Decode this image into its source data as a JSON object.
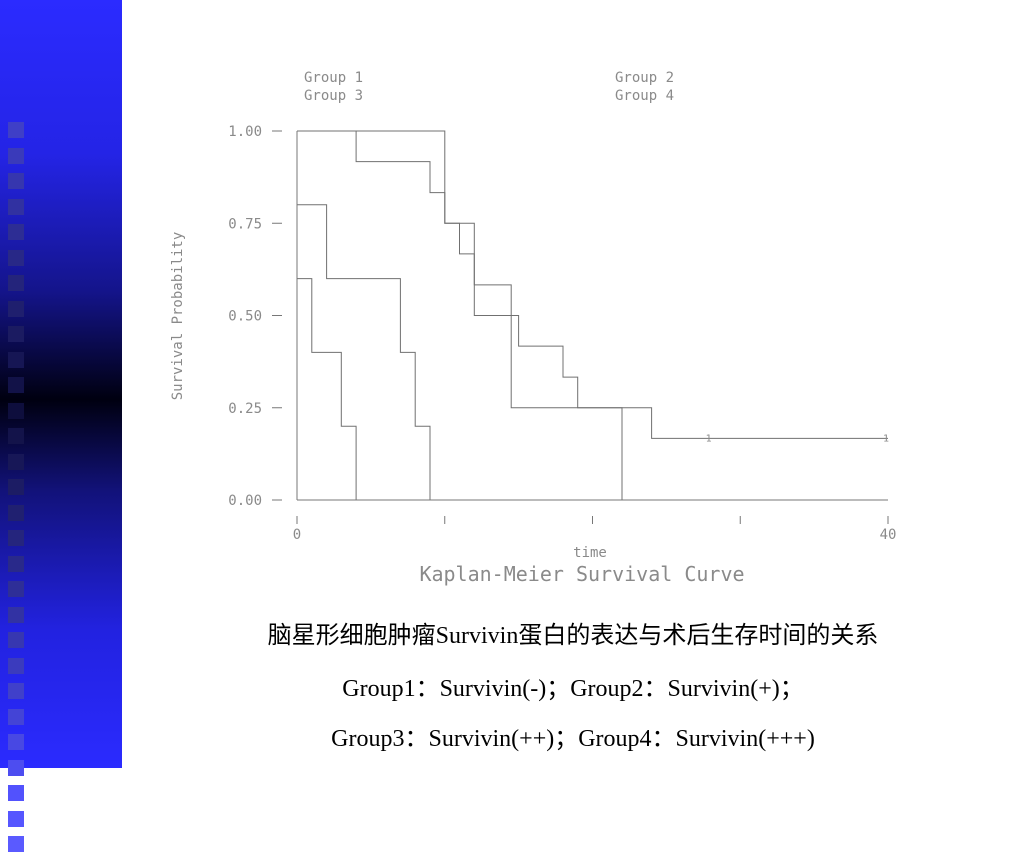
{
  "chart_data": {
    "type": "line",
    "title": "Kaplan-Meier Survival Curve",
    "xlabel": "time",
    "ylabel": "Survival Probability",
    "xlim": [
      0,
      40
    ],
    "ylim": [
      0,
      1
    ],
    "xticks": [
      0,
      10,
      20,
      30,
      40
    ],
    "xtick_labels": [
      "0",
      "",
      "",
      "",
      "40"
    ],
    "yticks": [
      0.0,
      0.25,
      0.5,
      0.75,
      1.0
    ],
    "ytick_labels": [
      "0.00",
      "0.25",
      "0.50",
      "0.75",
      "1.00"
    ],
    "legend": [
      "Group 1",
      "Group 2",
      "Group 3",
      "Group 4"
    ],
    "censor_mark": "1",
    "series": [
      {
        "name": "Group 1",
        "color": "#707070",
        "steps": [
          [
            0,
            1.0
          ],
          [
            10,
            1.0
          ],
          [
            10,
            0.75
          ],
          [
            12,
            0.75
          ],
          [
            12,
            0.583
          ],
          [
            14.5,
            0.583
          ],
          [
            14.5,
            0.25
          ],
          [
            22,
            0.25
          ],
          [
            22,
            0.0
          ]
        ]
      },
      {
        "name": "Group 2",
        "color": "#707070",
        "steps": [
          [
            0,
            1.0
          ],
          [
            4,
            1.0
          ],
          [
            4,
            0.917
          ],
          [
            9,
            0.917
          ],
          [
            9,
            0.833
          ],
          [
            10,
            0.833
          ],
          [
            10,
            0.75
          ],
          [
            11,
            0.75
          ],
          [
            11,
            0.667
          ],
          [
            12,
            0.667
          ],
          [
            12,
            0.5
          ],
          [
            15,
            0.5
          ],
          [
            15,
            0.417
          ],
          [
            18,
            0.417
          ],
          [
            18,
            0.333
          ],
          [
            19,
            0.333
          ],
          [
            19,
            0.25
          ],
          [
            24,
            0.25
          ],
          [
            24,
            0.167
          ],
          [
            40,
            0.167
          ]
        ],
        "censored": [
          [
            28,
            0.167
          ],
          [
            40,
            0.167
          ]
        ]
      },
      {
        "name": "Group 3",
        "color": "#707070",
        "steps": [
          [
            0,
            0.8
          ],
          [
            2,
            0.8
          ],
          [
            2,
            0.6
          ],
          [
            7,
            0.6
          ],
          [
            7,
            0.4
          ],
          [
            8,
            0.4
          ],
          [
            8,
            0.2
          ],
          [
            9,
            0.2
          ],
          [
            9,
            0.0
          ]
        ]
      },
      {
        "name": "Group 4",
        "color": "#707070",
        "steps": [
          [
            0,
            0.6
          ],
          [
            1,
            0.6
          ],
          [
            1,
            0.4
          ],
          [
            3,
            0.4
          ],
          [
            3,
            0.2
          ],
          [
            4,
            0.2
          ],
          [
            4,
            0.0
          ]
        ]
      }
    ]
  },
  "caption": {
    "line1": "脑星形细胞肿瘤Survivin蛋白的表达与术后生存时间的关系",
    "line2": "Group1：Survivin(-)；Group2：Survivin(+)；",
    "line3": "Group3：Survivin(++)；Group4：Survivin(+++)"
  }
}
